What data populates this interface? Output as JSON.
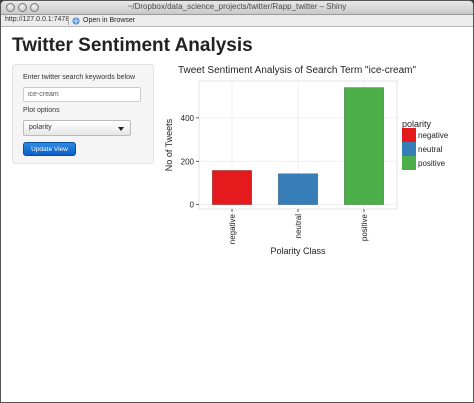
{
  "window": {
    "title": "~/Dropbox/data_science_projects/twitter/Rapp_twitter – Shiny"
  },
  "toolbar": {
    "url": "http://127.0.0.1:7478",
    "open_in_browser_label": "Open in Browser"
  },
  "app": {
    "title": "Twitter Sentiment Analysis"
  },
  "sidebar": {
    "search_label": "Enter twitter search keywords below",
    "search_value": "ice-cream",
    "plot_options_label": "Plot options",
    "plot_option_selected": "polarity",
    "update_button_label": "Update View"
  },
  "chart_data": {
    "type": "bar",
    "title": "Tweet Sentiment Analysis of Search Term \"ice-cream\"",
    "xlabel": "Polarity Class",
    "ylabel": "No of Tweets",
    "categories": [
      "negative",
      "neutral",
      "positive"
    ],
    "values": [
      158,
      143,
      540
    ],
    "colors": [
      "#e41a1c",
      "#377eb8",
      "#4daf4a"
    ],
    "ylim": [
      -20,
      570
    ],
    "yticks": [
      0,
      200,
      400
    ],
    "grid": true,
    "legend": {
      "title": "polarity",
      "entries": [
        "negative",
        "neutral",
        "positive"
      ],
      "placement": "right"
    }
  }
}
